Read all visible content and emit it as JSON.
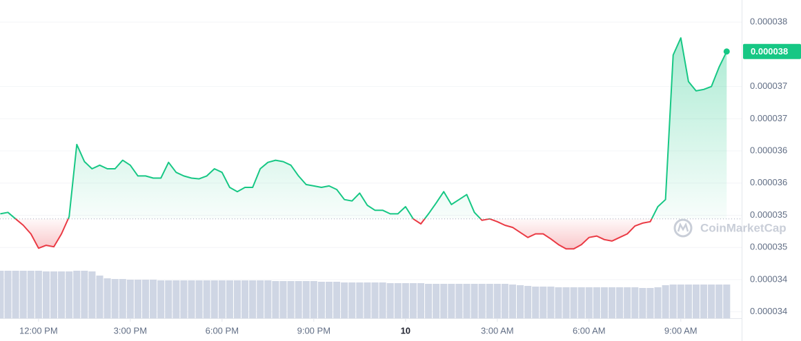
{
  "chart_data": {
    "type": "line",
    "up_color": "#16c784",
    "down_color": "#ea3943",
    "volume_color": "#cfd6e4",
    "grid": true,
    "baseline": 3.53e-05,
    "current_price": 3.764e-05,
    "current_price_label": "0.000038",
    "watermark": "CoinMarketCap",
    "xlim": [
      10.74,
      34.99
    ],
    "xticks": [
      {
        "value": 12,
        "label": "12:00 PM"
      },
      {
        "value": 15,
        "label": "3:00 PM"
      },
      {
        "value": 18,
        "label": "6:00 PM"
      },
      {
        "value": 21,
        "label": "9:00 PM"
      },
      {
        "value": 24,
        "label": "10"
      },
      {
        "value": 27,
        "label": "3:00 AM"
      },
      {
        "value": 30,
        "label": "6:00 AM"
      },
      {
        "value": 33,
        "label": "9:00 AM"
      }
    ],
    "ylim": [
      3.391e-05,
      3.836e-05
    ],
    "yticks": [
      {
        "value": 3.4e-05,
        "label": "0.000034"
      },
      {
        "value": 3.445e-05,
        "label": "0.000034"
      },
      {
        "value": 3.49e-05,
        "label": "0.000035"
      },
      {
        "value": 3.535e-05,
        "label": "0.000035"
      },
      {
        "value": 3.58e-05,
        "label": "0.000036"
      },
      {
        "value": 3.625e-05,
        "label": "0.000036"
      },
      {
        "value": 3.67e-05,
        "label": "0.000037"
      },
      {
        "value": 3.715e-05,
        "label": "0.000037"
      },
      {
        "value": 3.805e-05,
        "label": "0.000038"
      }
    ],
    "x": [
      10.75,
      11,
      11.25,
      11.5,
      11.75,
      12,
      12.25,
      12.5,
      12.75,
      13,
      13.25,
      13.5,
      13.75,
      14,
      14.25,
      14.5,
      14.75,
      15,
      15.25,
      15.5,
      15.75,
      16,
      16.25,
      16.5,
      16.75,
      17,
      17.25,
      17.5,
      17.75,
      18,
      18.25,
      18.5,
      18.75,
      19,
      19.25,
      19.5,
      19.75,
      20,
      20.25,
      20.5,
      20.75,
      21,
      21.25,
      21.5,
      21.75,
      22,
      22.25,
      22.5,
      22.75,
      23,
      23.25,
      23.5,
      23.75,
      24,
      24.25,
      24.5,
      24.75,
      25,
      25.25,
      25.5,
      25.75,
      26,
      26.25,
      26.5,
      26.75,
      27,
      27.25,
      27.5,
      27.75,
      28,
      28.25,
      28.5,
      28.75,
      29,
      29.25,
      29.5,
      29.75,
      30,
      30.25,
      30.5,
      30.75,
      31,
      31.25,
      31.5,
      31.75,
      32,
      32.25,
      32.5,
      32.75,
      33,
      33.25,
      33.5,
      33.75,
      34,
      34.25,
      34.5
    ],
    "values": [
      3.537e-05,
      3.539e-05,
      3.53e-05,
      3.521e-05,
      3.509e-05,
      3.489e-05,
      3.493e-05,
      3.491e-05,
      3.509e-05,
      3.533e-05,
      3.634e-05,
      3.61e-05,
      3.6e-05,
      3.605e-05,
      3.6e-05,
      3.6e-05,
      3.612e-05,
      3.605e-05,
      3.59e-05,
      3.59e-05,
      3.587e-05,
      3.587e-05,
      3.609e-05,
      3.595e-05,
      3.59e-05,
      3.587e-05,
      3.586e-05,
      3.59e-05,
      3.6e-05,
      3.595e-05,
      3.574e-05,
      3.568e-05,
      3.574e-05,
      3.574e-05,
      3.6e-05,
      3.609e-05,
      3.612e-05,
      3.61e-05,
      3.605e-05,
      3.59e-05,
      3.578e-05,
      3.576e-05,
      3.574e-05,
      3.576e-05,
      3.571e-05,
      3.557e-05,
      3.555e-05,
      3.566e-05,
      3.549e-05,
      3.542e-05,
      3.542e-05,
      3.537e-05,
      3.537e-05,
      3.547e-05,
      3.53e-05,
      3.523e-05,
      3.537e-05,
      3.552e-05,
      3.568e-05,
      3.55e-05,
      3.557e-05,
      3.564e-05,
      3.539e-05,
      3.528e-05,
      3.53e-05,
      3.526e-05,
      3.521e-05,
      3.518e-05,
      3.511e-05,
      3.504e-05,
      3.509e-05,
      3.509e-05,
      3.502e-05,
      3.494e-05,
      3.488e-05,
      3.488e-05,
      3.494e-05,
      3.504e-05,
      3.506e-05,
      3.501e-05,
      3.499e-05,
      3.504e-05,
      3.509e-05,
      3.52e-05,
      3.524e-05,
      3.526e-05,
      3.547e-05,
      3.557e-05,
      3.759e-05,
      3.783e-05,
      3.722e-05,
      3.709e-05,
      3.711e-05,
      3.715e-05,
      3.742e-05,
      3.764e-05
    ],
    "volume": [
      69,
      69,
      69,
      69,
      69,
      69,
      68,
      68,
      68,
      68,
      69,
      69,
      68,
      62,
      58,
      57,
      57,
      56,
      56,
      56,
      56,
      55,
      55,
      55,
      55,
      55,
      55,
      55,
      55,
      55,
      55,
      55,
      55,
      55,
      55,
      55,
      54,
      54,
      54,
      54,
      54,
      54,
      53,
      53,
      53,
      52,
      52,
      52,
      52,
      52,
      52,
      51,
      51,
      51,
      51,
      51,
      50,
      50,
      50,
      50,
      50,
      50,
      50,
      50,
      50,
      50,
      50,
      49,
      48,
      47,
      46,
      46,
      46,
      45,
      45,
      45,
      45,
      45,
      45,
      45,
      45,
      45,
      45,
      45,
      44,
      44,
      45,
      48,
      49,
      49,
      49,
      49,
      49,
      49,
      49,
      49
    ]
  }
}
